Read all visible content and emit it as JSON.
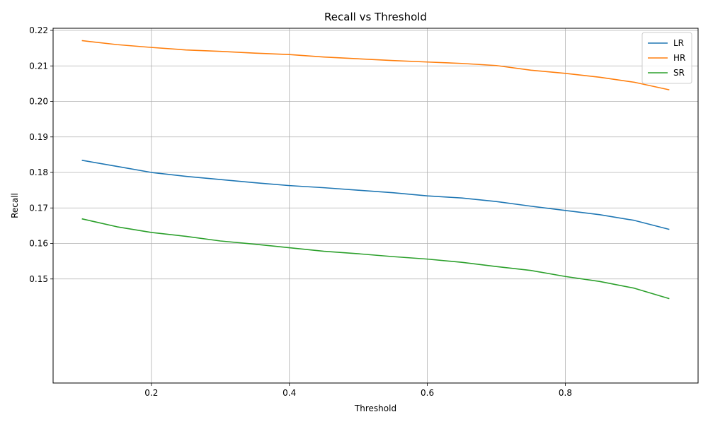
{
  "chart_data": {
    "type": "line",
    "title": "Recall vs Threshold",
    "xlabel": "Threshold",
    "ylabel": "Recall",
    "xlim": [
      0.0575,
      0.9925
    ],
    "ylim": [
      0.1207,
      0.2206
    ],
    "xticks": [
      0.2,
      0.4,
      0.6,
      0.8
    ],
    "xtick_labels": [
      "0.2",
      "0.4",
      "0.6",
      "0.8"
    ],
    "yticks": [
      0.15,
      0.16,
      0.17,
      0.18,
      0.19,
      0.2,
      0.21,
      0.22
    ],
    "ytick_labels": [
      "0.15",
      "0.16",
      "0.17",
      "0.18",
      "0.19",
      "0.20",
      "0.21",
      "0.22"
    ],
    "grid": true,
    "legend_position": "top-right",
    "x": [
      0.1,
      0.15,
      0.2,
      0.25,
      0.3,
      0.35,
      0.4,
      0.45,
      0.5,
      0.55,
      0.6,
      0.65,
      0.7,
      0.75,
      0.8,
      0.85,
      0.9,
      0.95
    ],
    "series": [
      {
        "name": "LR",
        "color": "#1f77b4",
        "values": [
          0.1834,
          0.1817,
          0.18,
          0.1789,
          0.178,
          0.1771,
          0.1763,
          0.1757,
          0.175,
          0.1743,
          0.1734,
          0.1728,
          0.1718,
          0.1705,
          0.1693,
          0.1681,
          0.1665,
          0.164
        ]
      },
      {
        "name": "HR",
        "color": "#ff7f0e",
        "values": [
          0.2171,
          0.216,
          0.2152,
          0.2145,
          0.2141,
          0.2136,
          0.2132,
          0.2125,
          0.212,
          0.2115,
          0.2111,
          0.2107,
          0.2101,
          0.2088,
          0.2079,
          0.2068,
          0.2054,
          0.2033
        ]
      },
      {
        "name": "SR",
        "color": "#2ca02c",
        "values": [
          0.1669,
          0.1647,
          0.1631,
          0.162,
          0.1607,
          0.1598,
          0.1588,
          0.1578,
          0.1571,
          0.1563,
          0.1556,
          0.1547,
          0.1535,
          0.1524,
          0.1507,
          0.1493,
          0.1474,
          0.1445
        ]
      }
    ]
  }
}
